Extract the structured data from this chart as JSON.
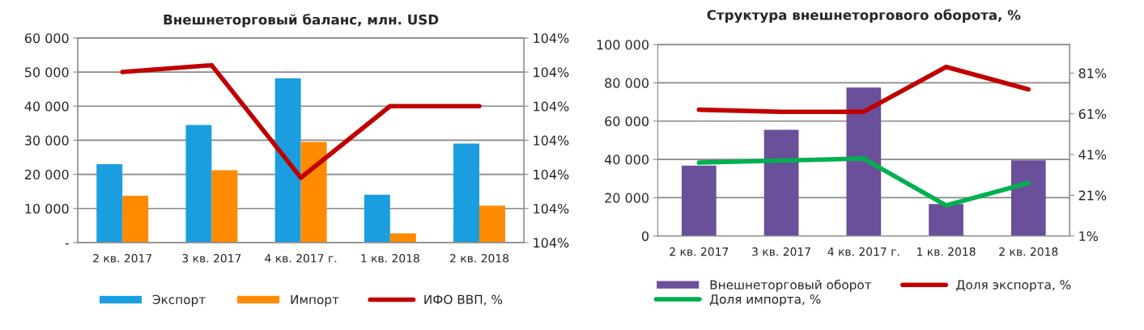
{
  "chart_data": [
    {
      "type": "bar",
      "title": "Внешнеторговый баланс, млн. USD",
      "categories": [
        "2 кв. 2017",
        "3 кв. 2017",
        "4 кв. 2017 г.",
        "1 кв. 2018",
        "2 кв. 2018"
      ],
      "series": [
        {
          "name": "Экспорт",
          "color": "#1a9ee0",
          "values": [
            23000,
            34500,
            48200,
            14000,
            29000
          ]
        },
        {
          "name": "Импорт",
          "color": "#ff8a00",
          "values": [
            13700,
            21200,
            29500,
            2700,
            10800
          ]
        },
        {
          "name": "ИФО ВВП, %",
          "type": "line",
          "axis": "y2",
          "color": "#c00000",
          "values": [
            104.1,
            104.12,
            103.79,
            104.0,
            104.0
          ]
        }
      ],
      "ylim": [
        0,
        60000
      ],
      "yticks": [
        {
          "value": 0,
          "label": "-"
        },
        {
          "value": 10000,
          "label": "10 000"
        },
        {
          "value": 20000,
          "label": "20 000"
        },
        {
          "value": 30000,
          "label": "30 000"
        },
        {
          "value": 40000,
          "label": "40 000"
        },
        {
          "value": 50000,
          "label": "50 000"
        },
        {
          "value": 60000,
          "label": "60 000"
        }
      ],
      "y2lim": [
        103.6,
        104.2
      ],
      "y2ticks": [
        {
          "value": 103.6,
          "label": "104%"
        },
        {
          "value": 103.7,
          "label": "104%"
        },
        {
          "value": 103.8,
          "label": "104%"
        },
        {
          "value": 103.9,
          "label": "104%"
        },
        {
          "value": 104.0,
          "label": "104%"
        },
        {
          "value": 104.1,
          "label": "104%"
        },
        {
          "value": 104.2,
          "label": "104%"
        }
      ],
      "grid": "y",
      "legend": "bottom",
      "marker": "none"
    },
    {
      "type": "bar",
      "title": "Структура внешнеторгового оборота, %",
      "categories": [
        "2 кв. 2017",
        "3 кв. 2017",
        "4 кв. 2017 г.",
        "1 кв. 2018",
        "2 кв. 2018"
      ],
      "series": [
        {
          "name": "Внешнеторговый оборот",
          "color": "#6a4f9a",
          "values": [
            36800,
            55500,
            77500,
            16700,
            39500
          ]
        },
        {
          "name": "Доля экспорта, %",
          "type": "line",
          "axis": "y2",
          "color": "#c00000",
          "values": [
            63,
            62,
            62,
            84,
            73
          ]
        },
        {
          "name": "Доля импорта, %",
          "type": "line",
          "axis": "y2",
          "color": "#00b050",
          "values": [
            37,
            38,
            39,
            16,
            27
          ]
        }
      ],
      "ylim": [
        0,
        100000
      ],
      "yticks": [
        0,
        {
          "value": 20000,
          "label": "20 000"
        },
        {
          "value": 40000,
          "label": "40 000"
        },
        {
          "value": 60000,
          "label": "60 000"
        },
        {
          "value": 80000,
          "label": "80 000"
        },
        {
          "value": 100000,
          "label": "100 000"
        }
      ],
      "y2lim": [
        1,
        95
      ],
      "y2ticks": [
        {
          "value": 1,
          "label": "1%"
        },
        {
          "value": 21,
          "label": "21%"
        },
        {
          "value": 41,
          "label": "41%"
        },
        {
          "value": 61,
          "label": "61%"
        },
        {
          "value": 81,
          "label": "81%"
        }
      ],
      "grid": "y",
      "legend": "bottom",
      "marker": "none"
    }
  ]
}
